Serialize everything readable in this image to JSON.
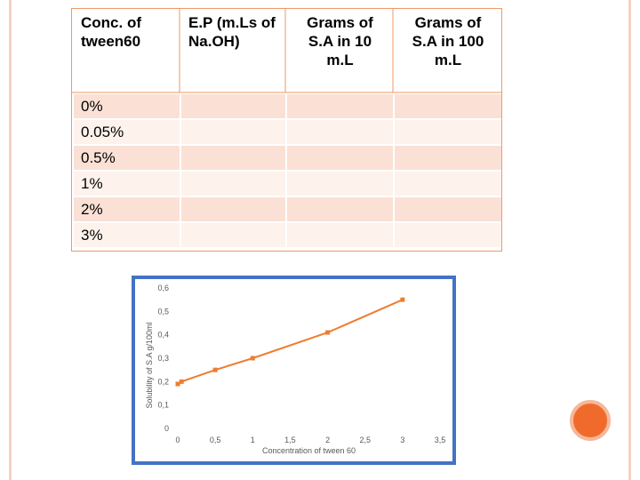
{
  "table": {
    "headers": [
      "Conc. of tween60",
      "E.P (m.Ls of Na.OH)",
      "Grams of S.A in 10 m.L",
      "Grams of S.A in 100 m.L"
    ],
    "rows": [
      "0%",
      "0.05%",
      "0.5%",
      "1%",
      "2%",
      "3%"
    ]
  },
  "chart_data": {
    "type": "line",
    "xlabel": "Concentration of tween 60",
    "ylabel": "Solubility of S.A g/100ml",
    "xlim": [
      0,
      3.5
    ],
    "ylim": [
      0,
      0.6
    ],
    "x_ticks": [
      "0",
      "0,5",
      "1",
      "1,5",
      "2",
      "2,5",
      "3",
      "3,5"
    ],
    "y_ticks": [
      "0",
      "0,1",
      "0,2",
      "0,3",
      "0,4",
      "0,5",
      "0,6"
    ],
    "series": [
      {
        "x": [
          0,
          0.05,
          0.5,
          1,
          2,
          3
        ],
        "y": [
          0.19,
          0.2,
          0.25,
          0.3,
          0.41,
          0.55
        ]
      }
    ],
    "colors": {
      "line": "#ed7d31",
      "frame": "#4472c4"
    },
    "grid": false
  }
}
